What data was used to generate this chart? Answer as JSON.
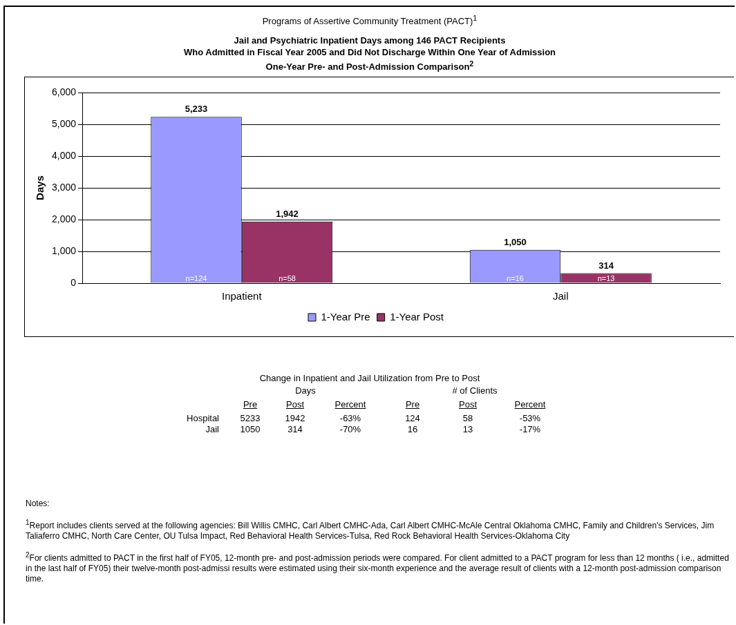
{
  "chart_data": {
    "type": "bar",
    "title": "Programs of Assertive Community Treatment (PACT)$^{1}$",
    "subtitle": "Jail and Psychiatric Inpatient Days among 146 PACT Recipients\nWho Admitted in Fiscal Year 2005 and Did Not Discharge Within One Year of Admission\nOne-Year Pre- and Post-Admission Comparison$^{2}$",
    "ylabel": "Days",
    "categories": [
      "Inpatient",
      "Jail"
    ],
    "series": [
      {
        "name": "1-Year Pre",
        "color": "#9999ff",
        "values": [
          5233,
          1050
        ],
        "value_labels": [
          "5,233",
          "1,050"
        ]
      },
      {
        "name": "1-Year Post",
        "color": "#993366",
        "values": [
          1942,
          314
        ],
        "value_labels": [
          "1,942",
          "314"
        ]
      }
    ],
    "ylim": [
      0,
      6000
    ],
    "yticks": [
      {
        "value": 0,
        "label": "0"
      },
      {
        "value": 1000,
        "label": "1,000"
      },
      {
        "value": 2000,
        "label": "2,000"
      },
      {
        "value": 3000,
        "label": "3,000"
      },
      {
        "value": 4000,
        "label": "4,000"
      },
      {
        "value": 5000,
        "label": "5,000"
      },
      {
        "value": 6000,
        "label": "6,000"
      }
    ],
    "grid": "y",
    "legend": "bottom",
    "annotations": [
      "n=124",
      "n=58",
      "n=16",
      "n=13",
      "Change in Inpatient and Jail Utilization from Pre to Post",
      "\tDays\t\t\t# of Clients\t\t",
      "\tPre\tPost\tPercent\tPre\tPost\tPercent",
      "Hospital\t5233\t1942\t-63%\t124\t58\t-53%",
      "Jail\t1050\t314\t-70%\t16\t13\t-17%",
      "Notes:",
      "$^{1}$Report includes clients served at the following agencies:  Bill Willis CMHC, Carl Albert CMHC-Ada, Carl Albert CMHC-McAle Central Oklahoma CMHC, Family and Children's Services, Jim Taliaferro CMHC, North Care Center, OU Tulsa Impact, Red Behavioral Health Services-Tulsa,  Red Rock Behavioral Health Services-Oklahoma City",
      "$^{2}$For clients admitted to PACT in the first half of FY05, 12-month pre- and post-admission periods were compared.  For client admitted to a PACT program for less than 12 months ( i.e., admitted in the last half of FY05) their twelve-month post-admissi results were estimated using their six-month experience and the average result of clients with a 12-month post-admission comparison time."
    ]
  }
}
